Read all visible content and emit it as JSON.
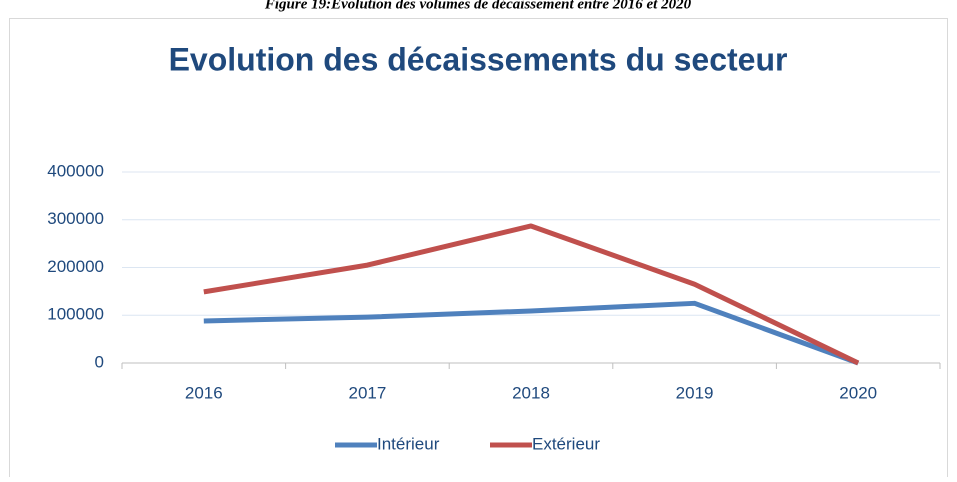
{
  "caption": "Figure 19:Evolution des volumes de décaissement entre 2016 et 2020",
  "chart_data": {
    "type": "line",
    "title": "Evolution des décaissements du secteur",
    "categories": [
      "2016",
      "2017",
      "2018",
      "2019",
      "2020"
    ],
    "series": [
      {
        "name": "Intérieur",
        "color": "#4f81bd",
        "values": [
          88000,
          96000,
          109000,
          125000,
          0
        ]
      },
      {
        "name": "Extérieur",
        "color": "#c0504d",
        "values": [
          149000,
          205000,
          287000,
          165000,
          0
        ]
      }
    ],
    "ylim": [
      0,
      400000
    ],
    "yticks": [
      0,
      100000,
      200000,
      300000,
      400000
    ],
    "grid": true,
    "legend": "bottom"
  }
}
